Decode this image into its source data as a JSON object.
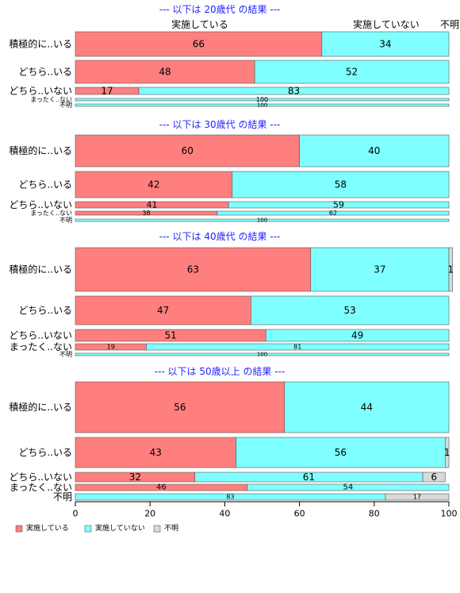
{
  "chart_data": {
    "type": "bar",
    "orientation": "horizontal",
    "stacked": true,
    "normalized_percent": true,
    "xlim": [
      0,
      100
    ],
    "x_ticks": [
      0,
      20,
      40,
      60,
      80,
      100
    ],
    "categories": [
      "積極的に..いる",
      "どちら..いる",
      "どちら..いない",
      "まったく..ない",
      "不明"
    ],
    "series_names": [
      "実施している",
      "実施していない",
      "不明"
    ],
    "colors": {
      "実施している": "#ff7f7f",
      "実施していない": "#7fffff",
      "不明": "#d9d9d9"
    },
    "top_labels": [
      "実施している",
      "実施していない",
      "不明"
    ],
    "legend": {
      "position": "bottom-left",
      "items": [
        "実施している",
        "実施していない",
        "不明"
      ]
    },
    "panels": [
      {
        "title": "--- 以下は 20歳代 の結果 ---",
        "rows": [
          {
            "category": "積極的に..いる",
            "values": [
              66,
              34,
              0
            ]
          },
          {
            "category": "どちら..いる",
            "values": [
              48,
              52,
              0
            ]
          },
          {
            "category": "どちら..いない",
            "values": [
              17,
              83,
              0
            ]
          },
          {
            "category": "まったく..ない",
            "values": [
              0,
              100,
              0
            ]
          },
          {
            "category": "不明",
            "values": [
              0,
              100,
              0
            ]
          }
        ]
      },
      {
        "title": "--- 以下は 30歳代 の結果 ---",
        "rows": [
          {
            "category": "積極的に..いる",
            "values": [
              60,
              40,
              0
            ]
          },
          {
            "category": "どちら..いる",
            "values": [
              42,
              58,
              0
            ]
          },
          {
            "category": "どちら..いない",
            "values": [
              41,
              59,
              0
            ]
          },
          {
            "category": "まったく..ない",
            "values": [
              38,
              62,
              0
            ]
          },
          {
            "category": "不明",
            "values": [
              0,
              100,
              0
            ]
          }
        ]
      },
      {
        "title": "--- 以下は 40歳代 の結果 ---",
        "rows": [
          {
            "category": "積極的に..いる",
            "values": [
              63,
              37,
              1
            ]
          },
          {
            "category": "どちら..いる",
            "values": [
              47,
              53,
              0
            ]
          },
          {
            "category": "どちら..いない",
            "values": [
              51,
              49,
              0
            ]
          },
          {
            "category": "まったく..ない",
            "values": [
              19,
              81,
              0
            ]
          },
          {
            "category": "不明",
            "values": [
              0,
              100,
              0
            ]
          }
        ]
      },
      {
        "title": "--- 以下は 50歳以上 の結果 ---",
        "rows": [
          {
            "category": "積極的に..いる",
            "values": [
              56,
              44,
              0
            ]
          },
          {
            "category": "どちら..いる",
            "values": [
              43,
              56,
              1
            ]
          },
          {
            "category": "どちら..いない",
            "values": [
              32,
              61,
              6
            ]
          },
          {
            "category": "まったく..ない",
            "values": [
              46,
              54,
              0
            ]
          },
          {
            "category": "不明",
            "values": [
              0,
              83,
              17
            ]
          }
        ]
      }
    ]
  }
}
